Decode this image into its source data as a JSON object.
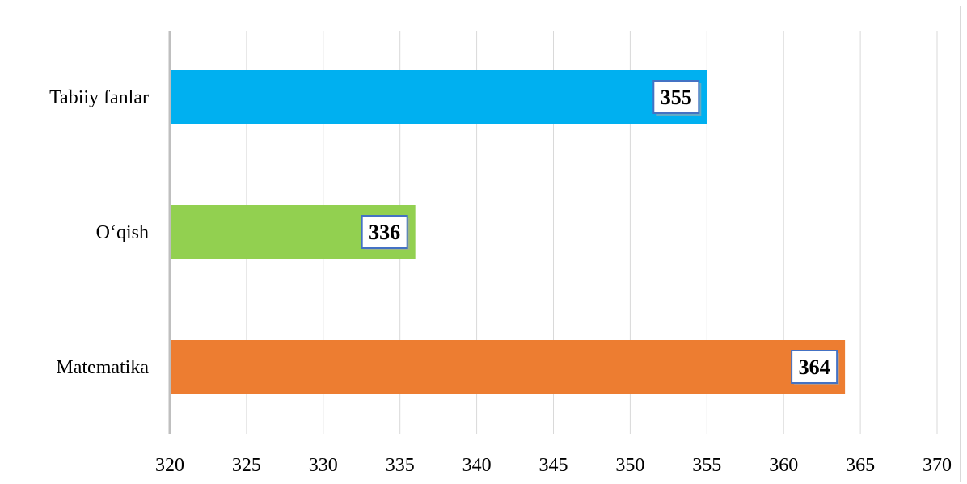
{
  "chart_data": {
    "type": "bar",
    "orientation": "horizontal",
    "categories": [
      "Tabiiy fanlar",
      "O‘qish",
      "Matematika"
    ],
    "values": [
      355,
      336,
      364
    ],
    "colors": [
      "#00b0f0",
      "#92d050",
      "#ed7d31"
    ],
    "data_labels": [
      "355",
      "336",
      "364"
    ],
    "xlim": [
      320,
      370
    ],
    "x_ticks": [
      320,
      325,
      330,
      335,
      340,
      345,
      350,
      355,
      360,
      365,
      370
    ],
    "x_tick_labels": [
      "320",
      "325",
      "330",
      "335",
      "340",
      "345",
      "350",
      "355",
      "360",
      "365",
      "370"
    ],
    "grid": "vertical",
    "legend": "none",
    "data_label_border_color": "#4472c4"
  }
}
